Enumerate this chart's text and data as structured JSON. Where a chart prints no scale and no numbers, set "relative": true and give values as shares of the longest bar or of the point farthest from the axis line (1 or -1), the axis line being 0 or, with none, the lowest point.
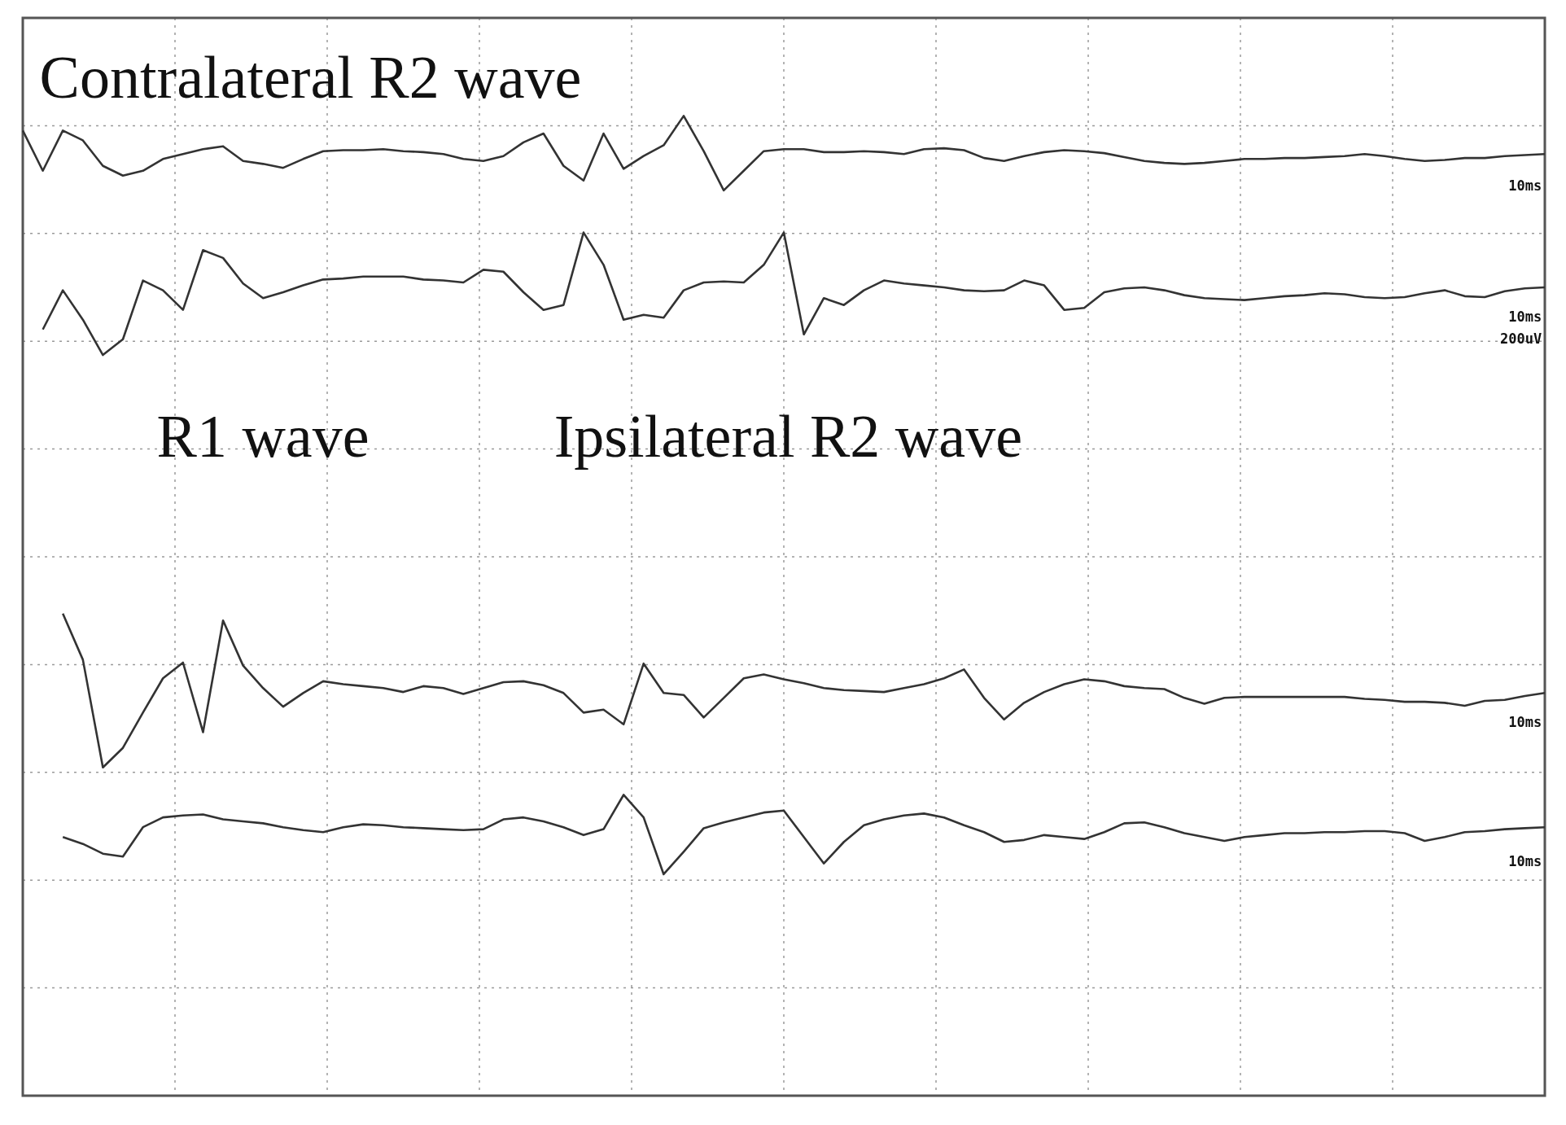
{
  "chart_data": {
    "type": "line",
    "relative": true,
    "grid": true,
    "legend": false,
    "annotations": [
      "Contralateral R2 wave",
      "R1 wave",
      "Ipsilateral R2 wave",
      "10ms",
      "10ms",
      "200uV",
      "10ms",
      "10ms"
    ],
    "categories": [
      null,
      null,
      null,
      null,
      null,
      null,
      null,
      null,
      null,
      null,
      null,
      null,
      null,
      null,
      null,
      null,
      null,
      null,
      null,
      null,
      null,
      null,
      null,
      null,
      null,
      null,
      null,
      null,
      null,
      null,
      null,
      null,
      null,
      null,
      null,
      null,
      null,
      null,
      null,
      null,
      null,
      null,
      null,
      null,
      null,
      null,
      null,
      null,
      null,
      null,
      null,
      null,
      null,
      null,
      null,
      null,
      null,
      null,
      null,
      null,
      null,
      null,
      null,
      null,
      null,
      null,
      null,
      null,
      null,
      null,
      null,
      null,
      null,
      null,
      null,
      null,
      null
    ],
    "series": [
      {
        "color": "#333333",
        "values": [
          0.985,
          0.944,
          0.985,
          0.975,
          0.949,
          0.939,
          0.944,
          0.956,
          0.961,
          0.966,
          0.969,
          0.954,
          0.951,
          0.947,
          0.956,
          0.964,
          0.965,
          0.965,
          0.966,
          0.964,
          0.963,
          0.961,
          0.956,
          0.954,
          0.959,
          0.973,
          0.982,
          0.949,
          0.934,
          0.982,
          0.946,
          0.959,
          0.97,
          1.0,
          0.964,
          0.924,
          0.944,
          0.964,
          0.966,
          0.966,
          0.963,
          0.963,
          0.964,
          0.963,
          0.961,
          0.966,
          0.967,
          0.965,
          0.957,
          0.954,
          0.959,
          0.963,
          0.965,
          0.964,
          0.962,
          0.958,
          0.954,
          0.952,
          0.951,
          0.952,
          0.954,
          0.956,
          0.956,
          0.957,
          0.957,
          0.958,
          0.959,
          0.961,
          0.959,
          0.956,
          0.954,
          0.955,
          0.957,
          0.957,
          0.959,
          0.96,
          0.961
        ]
      },
      {
        "color": "#333333",
        "values": [
          null,
          0.782,
          0.822,
          0.792,
          0.756,
          0.772,
          0.832,
          0.822,
          0.802,
          0.863,
          0.855,
          0.829,
          0.814,
          0.82,
          0.827,
          0.833,
          0.834,
          0.836,
          0.836,
          0.836,
          0.833,
          0.832,
          0.83,
          0.843,
          0.841,
          0.82,
          0.802,
          0.807,
          0.881,
          0.848,
          0.792,
          0.797,
          0.794,
          0.822,
          0.83,
          0.831,
          0.83,
          0.848,
          0.881,
          0.777,
          0.814,
          0.807,
          0.822,
          0.832,
          0.829,
          0.827,
          0.825,
          0.822,
          0.821,
          0.822,
          0.832,
          0.827,
          0.802,
          0.804,
          0.82,
          0.824,
          0.825,
          0.822,
          0.817,
          0.814,
          0.813,
          0.812,
          0.814,
          0.816,
          0.817,
          0.819,
          0.818,
          0.815,
          0.814,
          0.815,
          0.819,
          0.822,
          0.816,
          0.815,
          0.821,
          0.824,
          0.825
        ]
      },
      {
        "color": "#333333",
        "values": [
          null,
          null,
          0.492,
          0.445,
          0.335,
          0.355,
          0.391,
          0.426,
          0.442,
          0.371,
          0.485,
          0.439,
          0.416,
          0.397,
          0.411,
          0.423,
          0.42,
          0.418,
          0.416,
          0.412,
          0.418,
          0.416,
          0.41,
          0.416,
          0.422,
          0.423,
          0.419,
          0.411,
          0.391,
          0.394,
          0.379,
          0.441,
          0.411,
          0.409,
          0.386,
          0.406,
          0.426,
          0.43,
          0.425,
          0.421,
          0.416,
          0.414,
          0.413,
          0.412,
          0.416,
          0.42,
          0.426,
          0.435,
          0.406,
          0.384,
          0.401,
          0.412,
          0.42,
          0.425,
          0.423,
          0.418,
          0.416,
          0.415,
          0.406,
          0.4,
          0.406,
          0.407,
          0.407,
          0.407,
          0.407,
          0.407,
          0.407,
          0.405,
          0.404,
          0.402,
          0.402,
          0.401,
          0.398,
          0.403,
          0.404,
          0.408,
          0.411
        ]
      },
      {
        "color": "#333333",
        "values": [
          null,
          null,
          0.264,
          0.257,
          0.247,
          0.244,
          0.274,
          0.284,
          0.286,
          0.287,
          0.282,
          0.28,
          0.278,
          0.274,
          0.271,
          0.269,
          0.274,
          0.277,
          0.276,
          0.274,
          0.273,
          0.272,
          0.271,
          0.272,
          0.282,
          0.284,
          0.28,
          0.274,
          0.266,
          0.272,
          0.307,
          0.284,
          0.226,
          0.249,
          0.273,
          0.279,
          0.284,
          0.289,
          0.291,
          0.264,
          0.237,
          0.259,
          0.276,
          0.282,
          0.286,
          0.288,
          0.284,
          0.276,
          0.269,
          0.259,
          0.261,
          0.266,
          0.264,
          0.262,
          0.269,
          0.278,
          0.279,
          0.274,
          0.268,
          0.264,
          0.26,
          0.264,
          0.266,
          0.268,
          0.268,
          0.269,
          0.269,
          0.27,
          0.27,
          0.268,
          0.26,
          0.264,
          0.269,
          0.27,
          0.272,
          0.273,
          0.274
        ]
      }
    ]
  }
}
